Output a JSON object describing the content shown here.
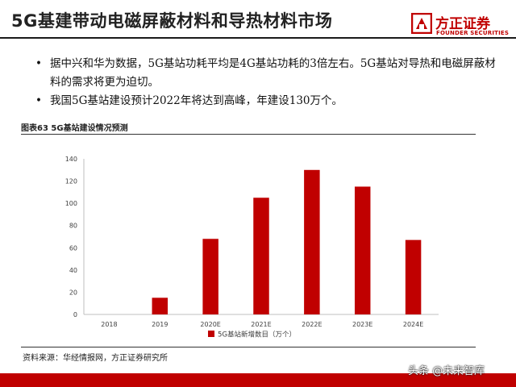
{
  "slide": {
    "title": "5G基建带动电磁屏蔽材料和导热材料市场",
    "logo": {
      "name_cn": "方正证券",
      "name_en": "FOUNDER SECURITIES",
      "accent_color": "#c00000"
    },
    "bullets": [
      "据中兴和华为数据，5G基站功耗平均是4G基站功耗的3倍左右。5G基站对导热和电磁屏蔽材料的需求将更为迫切。",
      "我国5G基站建设预计2022年将达到高峰，年建设130万个。"
    ],
    "figure_caption": "图表63 5G基站建设情况预测",
    "source": "资料来源：华经情报网，方正证券研究所",
    "watermark": "头条 @未来智库"
  },
  "chart_data": {
    "type": "bar",
    "categories": [
      "2018",
      "2019",
      "2020E",
      "2021E",
      "2022E",
      "2023E",
      "2024E"
    ],
    "series": [
      {
        "name": "5G基站新增数目（万个）",
        "values": [
          0,
          15,
          68,
          105,
          130,
          115,
          67
        ],
        "color": "#c00000"
      }
    ],
    "ylim": [
      0,
      140
    ],
    "yticks": [
      0,
      20,
      40,
      60,
      80,
      100,
      120,
      140
    ],
    "grid": false,
    "legend": "bottom-center",
    "title": "",
    "xlabel": "",
    "ylabel": ""
  }
}
